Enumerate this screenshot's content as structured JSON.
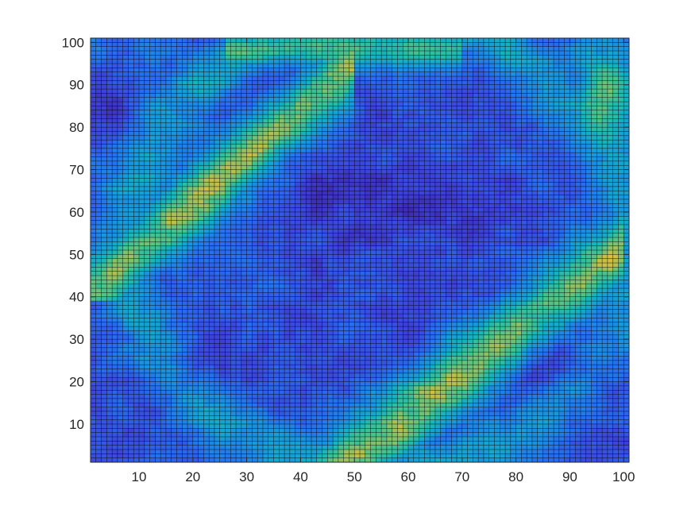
{
  "chart_data": {
    "type": "heatmap",
    "title": "",
    "xlabel": "",
    "ylabel": "",
    "xlim": [
      1,
      101
    ],
    "ylim": [
      1,
      101
    ],
    "grid_size": [
      100,
      100
    ],
    "grid": "on",
    "cell_edge_color": "#000000",
    "x_ticks": [
      10,
      20,
      30,
      40,
      50,
      60,
      70,
      80,
      90,
      100
    ],
    "y_ticks": [
      10,
      20,
      30,
      40,
      50,
      60,
      70,
      80,
      90,
      100
    ],
    "x_tick_labels": [
      "10",
      "20",
      "30",
      "40",
      "50",
      "60",
      "70",
      "80",
      "90",
      "100"
    ],
    "y_tick_labels": [
      "10",
      "20",
      "30",
      "40",
      "50",
      "60",
      "70",
      "80",
      "90",
      "100"
    ],
    "colormap": "parula",
    "value_range": [
      0,
      1
    ],
    "colors": {
      "low": "#3e2bb0",
      "mid_low": "#2a6de0",
      "mid": "#1fa6c8",
      "mid_high": "#47c28e",
      "high": "#f0bf3a",
      "max": "#f9e029"
    },
    "features": {
      "yellow_band": "diagonal high-value band from the upper-left region (x≈3–50, y≈40–98) curving across the top, and a second band from the bottom (x≈45–60, y≈1–20) rising to the right edge (x≈75–100, y≈40–100)",
      "low_regions": "deep blue basins centred near (55, 60), (20, 22), (85, 20) and the top-left corner (3, 85)"
    }
  }
}
